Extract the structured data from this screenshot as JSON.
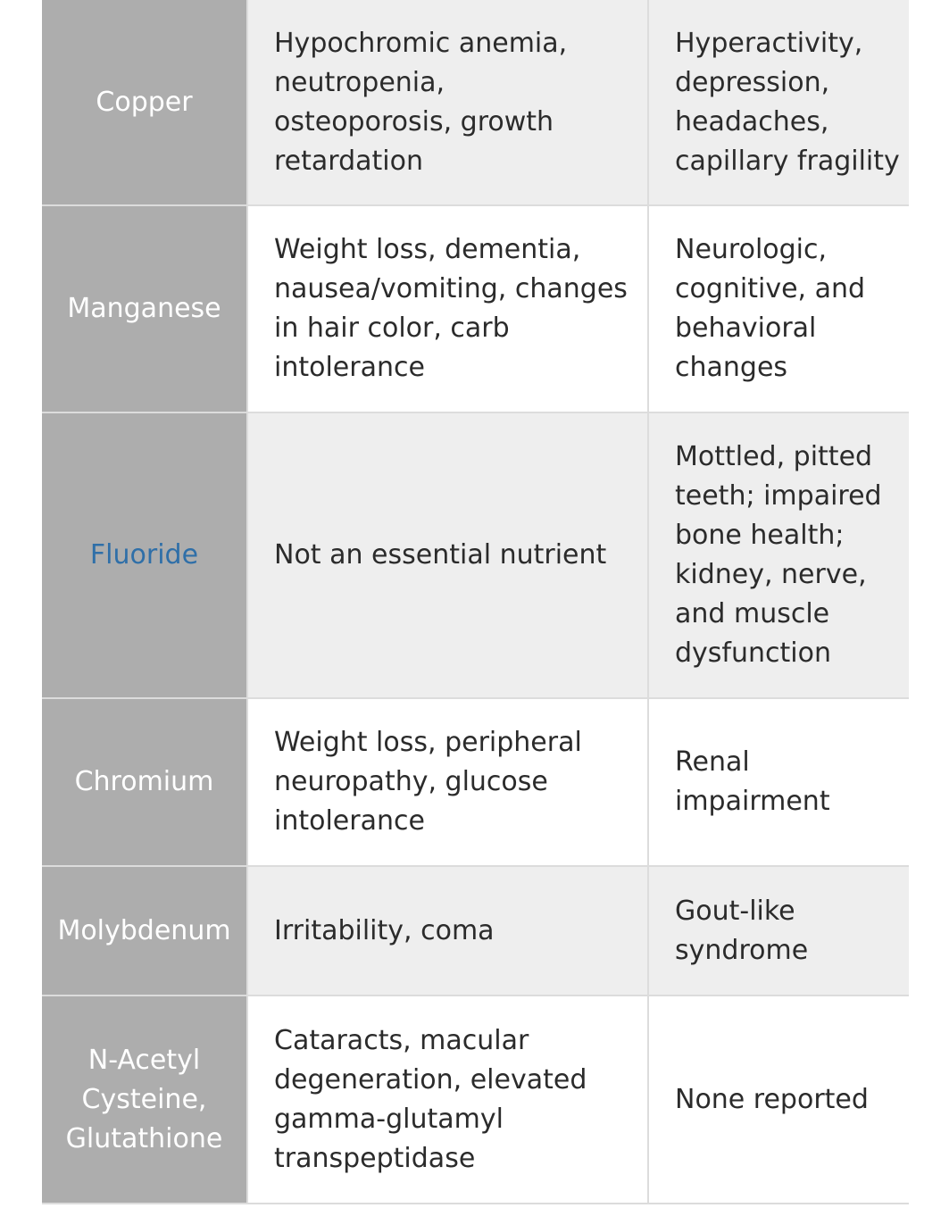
{
  "rows": [
    {
      "nutrient": "Copper",
      "deficiency": "Hypochromic anemia, neutropenia, osteoporosis, growth retardation",
      "toxicity": "Hyperactivity, depression, headaches, capillary fragility"
    },
    {
      "nutrient": "Manganese",
      "deficiency": "Weight loss, dementia, nausea/vomiting, changes in hair color, carb intolerance",
      "toxicity": "Neurologic, cognitive, and behavioral changes"
    },
    {
      "nutrient": "Fluoride",
      "deficiency": "Not an essential nutrient",
      "toxicity": "Mottled, pitted teeth; impaired bone health; kidney, nerve, and muscle dysfunction"
    },
    {
      "nutrient": "Chromium",
      "deficiency": "Weight loss, peripheral neuropathy, glucose intolerance",
      "toxicity": "Renal impairment"
    },
    {
      "nutrient": "Molybdenum",
      "deficiency": "Irritability, coma",
      "toxicity": "Gout-like syndrome"
    },
    {
      "nutrient": "N-Acetyl\nCysteine,\nGlutathione",
      "deficiency": "Cataracts, macular degeneration, elevated gamma-glutamyl transpeptidase",
      "toxicity": "None reported"
    }
  ],
  "colors": {
    "name_column_bg": "#adadad",
    "shaded_row_bg": "#eeeeee",
    "link_text": "#2f6fa8"
  }
}
